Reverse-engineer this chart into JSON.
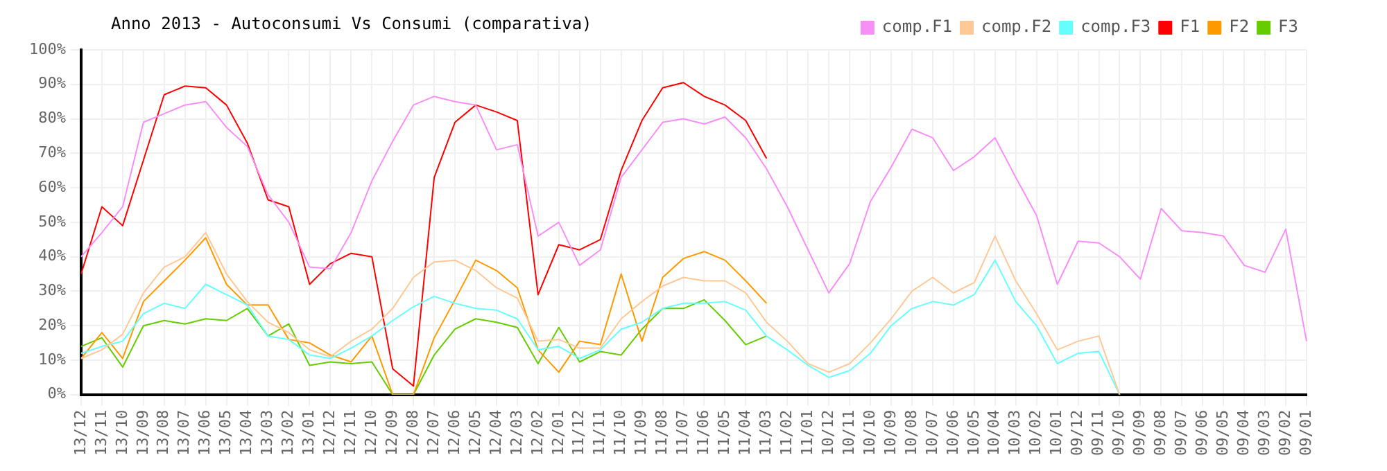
{
  "chart_data": {
    "type": "line",
    "title": "Anno 2013 - Autoconsumi Vs Consumi (comparativa)",
    "categories": [
      "13/12",
      "13/11",
      "13/10",
      "13/09",
      "13/08",
      "13/07",
      "13/06",
      "13/05",
      "13/04",
      "13/03",
      "13/02",
      "13/01",
      "12/12",
      "12/11",
      "12/10",
      "12/09",
      "12/08",
      "12/07",
      "12/06",
      "12/05",
      "12/04",
      "12/03",
      "12/02",
      "12/01",
      "11/12",
      "11/11",
      "11/10",
      "11/09",
      "11/08",
      "11/07",
      "11/06",
      "11/05",
      "11/04",
      "11/03",
      "11/02",
      "11/01",
      "10/12",
      "10/11",
      "10/10",
      "10/09",
      "10/08",
      "10/07",
      "10/06",
      "10/05",
      "10/04",
      "10/03",
      "10/02",
      "10/01",
      "09/12",
      "09/11",
      "09/10",
      "09/09",
      "09/08",
      "09/07",
      "09/06",
      "09/05",
      "09/04",
      "09/03",
      "09/02",
      "09/01"
    ],
    "series": [
      {
        "name": "comp.F1",
        "color": "#f78ff7",
        "values": [
          40,
          47,
          54.5,
          79,
          81.5,
          84,
          85,
          77.5,
          72,
          58,
          50,
          37,
          36.5,
          47,
          62,
          73.5,
          84,
          86.5,
          85,
          84,
          71,
          72.5,
          46,
          50,
          37.5,
          42,
          63,
          71,
          79,
          80,
          78.5,
          80.5,
          74.5,
          65.5,
          54.5,
          42,
          29.5,
          38,
          56,
          66,
          77,
          74.5,
          65,
          69,
          74.5,
          63,
          52,
          32,
          44.5,
          44,
          40,
          33.5,
          54,
          47.5,
          47,
          46,
          37.5,
          35.5,
          48,
          15.5
        ]
      },
      {
        "name": "comp.F2",
        "color": "#ffc896",
        "values": [
          10.5,
          13,
          17.5,
          29.5,
          37,
          40,
          47,
          35,
          27,
          21,
          18,
          13,
          11,
          15.5,
          19,
          25,
          34,
          38.5,
          39,
          36,
          31,
          28,
          15.5,
          16,
          13.5,
          13.5,
          22,
          27,
          31.5,
          34,
          33,
          33,
          29.5,
          21,
          15.5,
          9,
          6.5,
          9,
          15,
          22,
          30,
          34,
          29.5,
          32.5,
          46,
          33,
          23.5,
          13,
          15.5,
          17,
          0,
          null,
          null,
          null,
          null,
          null,
          null,
          null,
          null,
          null
        ]
      },
      {
        "name": "comp.F3",
        "color": "#66ffff",
        "values": [
          12,
          14,
          15.5,
          23.5,
          26.5,
          25,
          32,
          29,
          26,
          17,
          16,
          11.5,
          10.5,
          13.5,
          17,
          21.5,
          25.5,
          28.5,
          26.5,
          25,
          24.5,
          22,
          13,
          14,
          10.5,
          13,
          19,
          21,
          25,
          26.5,
          26.5,
          27,
          24.5,
          17,
          13,
          8.5,
          5,
          7,
          12,
          20,
          25,
          27,
          26,
          29,
          39,
          27,
          20,
          9,
          12,
          12.5,
          0,
          null,
          null,
          null,
          null,
          null,
          null,
          null,
          null,
          null
        ]
      },
      {
        "name": "F1",
        "color": "#ff0000",
        "values": [
          35,
          54.5,
          49,
          68,
          87,
          89.5,
          89,
          84,
          73,
          56.5,
          54.5,
          32,
          38,
          41,
          40,
          7.5,
          2.5,
          63,
          79,
          84,
          82,
          79.5,
          29,
          43.5,
          42,
          45,
          65,
          79.5,
          89,
          90.5,
          86.5,
          84,
          79.5,
          68.5,
          null,
          null,
          null,
          null,
          null,
          null,
          null,
          null,
          null,
          null,
          null,
          null,
          null,
          null,
          null,
          null,
          null,
          null,
          null,
          null,
          null,
          null,
          null,
          null,
          null,
          null
        ]
      },
      {
        "name": "F2",
        "color": "#ff9900",
        "values": [
          10.5,
          18,
          10.5,
          27,
          33,
          39,
          45.5,
          32,
          26,
          26,
          16,
          15,
          11.5,
          9.5,
          17,
          0,
          0,
          16.5,
          27.5,
          39,
          36,
          31,
          13,
          6.5,
          15.5,
          14.5,
          35,
          15.5,
          34,
          39.5,
          41.5,
          39,
          33,
          26.5,
          null,
          null,
          null,
          null,
          null,
          null,
          null,
          null,
          null,
          null,
          null,
          null,
          null,
          null,
          null,
          null,
          null,
          null,
          null,
          null,
          null,
          null,
          null,
          null,
          null,
          null
        ]
      },
      {
        "name": "F3",
        "color": "#66cc00",
        "values": [
          14,
          16.5,
          8,
          20,
          21.5,
          20.5,
          22,
          21.5,
          25,
          17,
          20.5,
          8.5,
          9.5,
          9,
          9.5,
          0,
          0,
          11.5,
          19,
          22,
          21,
          19.5,
          9,
          19.5,
          9.5,
          12.5,
          11.5,
          19,
          25,
          25,
          27.5,
          21.5,
          14.5,
          17,
          null,
          null,
          null,
          null,
          null,
          null,
          null,
          null,
          null,
          null,
          null,
          null,
          null,
          null,
          null,
          null,
          null,
          null,
          null,
          null,
          null,
          null,
          null,
          null,
          null,
          null
        ]
      }
    ],
    "ylim": [
      0,
      100
    ],
    "yticks": [
      {
        "value": 0,
        "label": "0%"
      },
      {
        "value": 10,
        "label": "10%"
      },
      {
        "value": 20,
        "label": "20%"
      },
      {
        "value": 30,
        "label": "30%"
      },
      {
        "value": 40,
        "label": "40%"
      },
      {
        "value": 50,
        "label": "50%"
      },
      {
        "value": 60,
        "label": "60%"
      },
      {
        "value": 70,
        "label": "70%"
      },
      {
        "value": 80,
        "label": "80%"
      },
      {
        "value": 90,
        "label": "90%"
      },
      {
        "value": 100,
        "label": "100%"
      }
    ],
    "grid": true,
    "legend": "top right"
  }
}
